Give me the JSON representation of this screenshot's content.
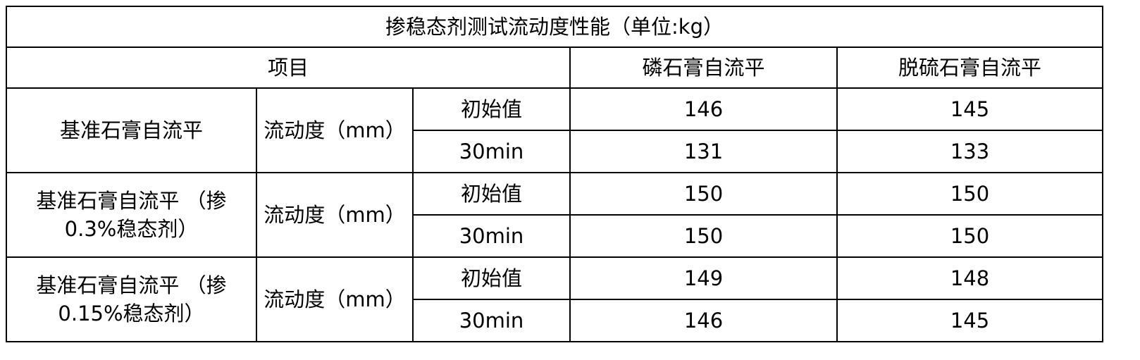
{
  "title": "掺稳态剂测试流动度性能（单位:kg）",
  "header": {
    "item": "项目",
    "col1": "磷石膏自流平",
    "col2": "脱硫石膏自流平"
  },
  "groups": [
    {
      "name": "基准石膏自流平",
      "metric": "流动度（mm）",
      "rows": [
        {
          "label": "初始值",
          "v1": "146",
          "v2": "145"
        },
        {
          "label": "30min",
          "v1": "131",
          "v2": "133"
        }
      ]
    },
    {
      "name": "基准石膏自流平 （掺0.3%稳态剂）",
      "metric": "流动度（mm）",
      "rows": [
        {
          "label": "初始值",
          "v1": "150",
          "v2": "150"
        },
        {
          "label": "30min",
          "v1": "150",
          "v2": "150"
        }
      ]
    },
    {
      "name": "基准石膏自流平 （掺0.15%稳态剂）",
      "metric": "流动度（mm）",
      "rows": [
        {
          "label": "初始值",
          "v1": "149",
          "v2": "148"
        },
        {
          "label": "30min",
          "v1": "146",
          "v2": "145"
        }
      ]
    }
  ]
}
